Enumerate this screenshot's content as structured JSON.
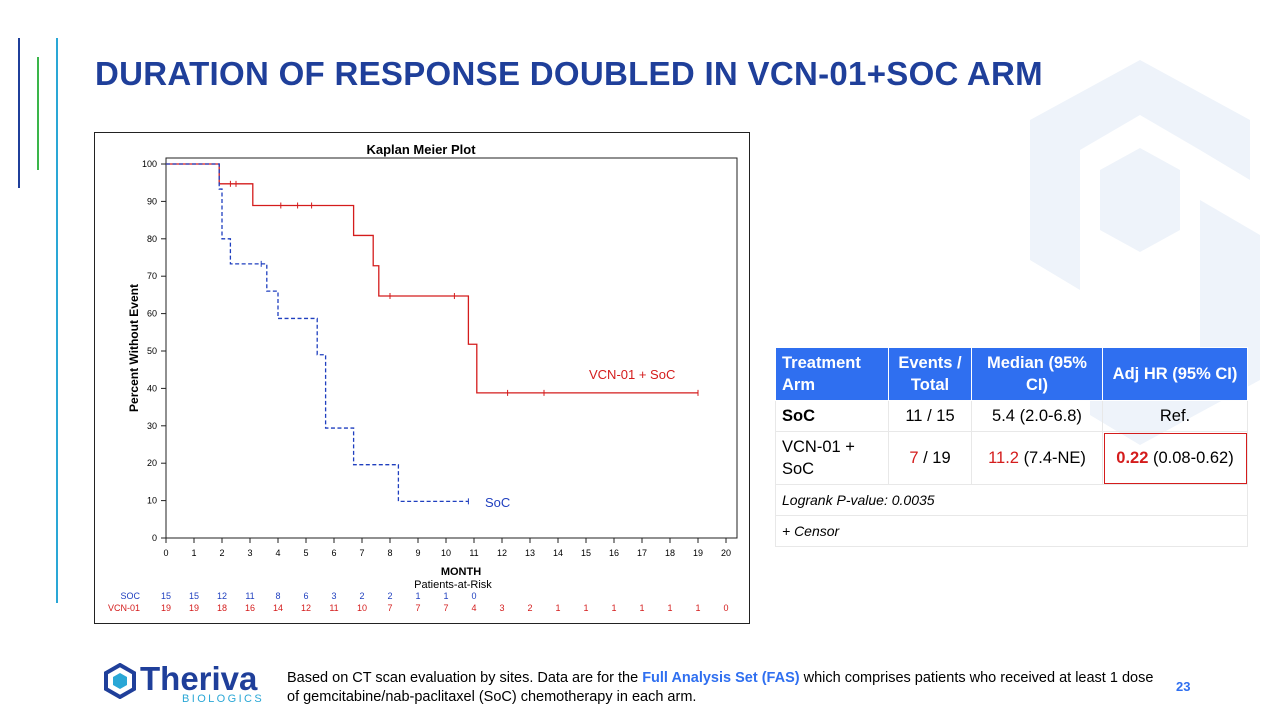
{
  "slide": {
    "title": "DURATION OF RESPONSE DOUBLED IN VCN-01+SOC ARM",
    "page_number": "23"
  },
  "colors": {
    "brand_blue": "#1f3f9a",
    "header_blue": "#2f6ff0",
    "red": "#d41c1c",
    "soc_blue": "#1f3fbf"
  },
  "chart_data": {
    "type": "line",
    "title": "Kaplan Meier Plot",
    "xlabel": "MONTH",
    "ylabel": "Percent Without Event",
    "xlim": [
      0,
      20
    ],
    "ylim": [
      0,
      100
    ],
    "x_ticks": [
      0,
      1,
      2,
      3,
      4,
      5,
      6,
      7,
      8,
      9,
      10,
      11,
      12,
      13,
      14,
      15,
      16,
      17,
      18,
      19,
      20
    ],
    "y_ticks": [
      0,
      10,
      20,
      30,
      40,
      50,
      60,
      70,
      80,
      90,
      100
    ],
    "series": [
      {
        "name": "VCN-01 + SoC",
        "label": "VCN-01 + SoC",
        "style": "solid",
        "color": "#d41c1c",
        "steps": [
          [
            0,
            100
          ],
          [
            1.9,
            94.7
          ],
          [
            3.1,
            88.9
          ],
          [
            6.7,
            80.9
          ],
          [
            7.4,
            72.8
          ],
          [
            7.6,
            64.7
          ],
          [
            10.8,
            51.8
          ],
          [
            11.1,
            38.8
          ],
          [
            19.0,
            38.8
          ]
        ],
        "censor_x": [
          2.3,
          2.5,
          4.1,
          4.7,
          5.2,
          8.0,
          10.3,
          12.2,
          13.5,
          19.0
        ]
      },
      {
        "name": "SoC",
        "label": "SoC",
        "style": "dashed",
        "color": "#1f3fbf",
        "steps": [
          [
            0,
            100
          ],
          [
            1.9,
            93.3
          ],
          [
            2.0,
            80.0
          ],
          [
            2.3,
            73.3
          ],
          [
            3.6,
            66.0
          ],
          [
            4.0,
            58.7
          ],
          [
            5.4,
            49.0
          ],
          [
            5.7,
            29.4
          ],
          [
            6.7,
            19.6
          ],
          [
            8.3,
            9.8
          ],
          [
            10.8,
            9.8
          ]
        ],
        "censor_x": [
          3.4,
          10.8
        ]
      }
    ],
    "risk_table": {
      "title": "Patients-at-Risk",
      "rows": [
        {
          "label": "SOC",
          "values": [
            "15",
            "15",
            "12",
            "11",
            "8",
            "6",
            "3",
            "2",
            "2",
            "1",
            "1",
            "0"
          ]
        },
        {
          "label": "VCN-01",
          "values": [
            "19",
            "19",
            "18",
            "16",
            "14",
            "12",
            "11",
            "10",
            "7",
            "7",
            "7",
            "4",
            "3",
            "2",
            "1",
            "1",
            "1",
            "1",
            "1",
            "1",
            "0"
          ]
        }
      ]
    }
  },
  "table": {
    "headers": [
      "Treatment Arm",
      "Events / Total",
      "Median (95% CI)",
      "Adj HR (95% CI)"
    ],
    "rows": [
      {
        "arm": "SoC",
        "events": "11",
        "total": "/ 15",
        "median": "5.4 (2.0-6.8)",
        "hr": "Ref."
      },
      {
        "arm": "VCN-01 + SoC",
        "events": "7",
        "total": "/ 19",
        "median_val": "11.2",
        "median_ci": "(7.4-NE)",
        "hr_val": "0.22",
        "hr_ci": "(0.08-0.62)"
      }
    ],
    "logrank": "Logrank P-value:  0.0035",
    "censor_note": "+ Censor"
  },
  "logo": {
    "name": "Theriva",
    "sub": "BIOLOGICS"
  },
  "footnote": {
    "before": "Based on CT scan evaluation by sites. Data are for the ",
    "highlight": "Full Analysis Set (FAS)",
    "after": " which comprises patients who received at least 1 dose of gemcitabine/nab-paclitaxel (SoC) chemotherapy in each arm."
  }
}
